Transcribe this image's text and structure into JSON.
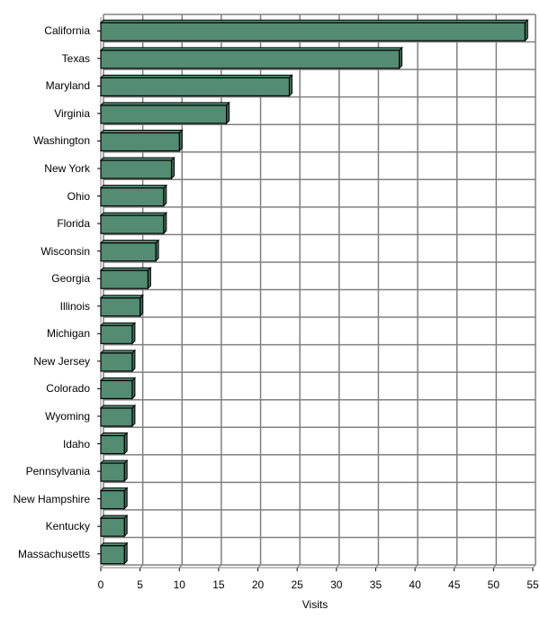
{
  "chart_data": {
    "type": "bar",
    "orientation": "horizontal",
    "title": "",
    "xlabel": "Visits",
    "ylabel": "",
    "xlim": [
      0,
      55
    ],
    "x_ticks": [
      0,
      5,
      10,
      15,
      20,
      25,
      30,
      35,
      40,
      45,
      50,
      55
    ],
    "grid": true,
    "legend": null,
    "bar_color": "#548c73",
    "categories": [
      "California",
      "Texas",
      "Maryland",
      "Virginia",
      "Washington",
      "New York",
      "Ohio",
      "Florida",
      "Wisconsin",
      "Georgia",
      "Illinois",
      "Michigan",
      "New Jersey",
      "Colorado",
      "Wyoming",
      "Idaho",
      "Pennsylvania",
      "New Hampshire",
      "Kentucky",
      "Massachusetts"
    ],
    "values": [
      54,
      38,
      24,
      16,
      10,
      9,
      8,
      8,
      7,
      6,
      5,
      4,
      4,
      4,
      4,
      3,
      3,
      3,
      3,
      3
    ]
  }
}
